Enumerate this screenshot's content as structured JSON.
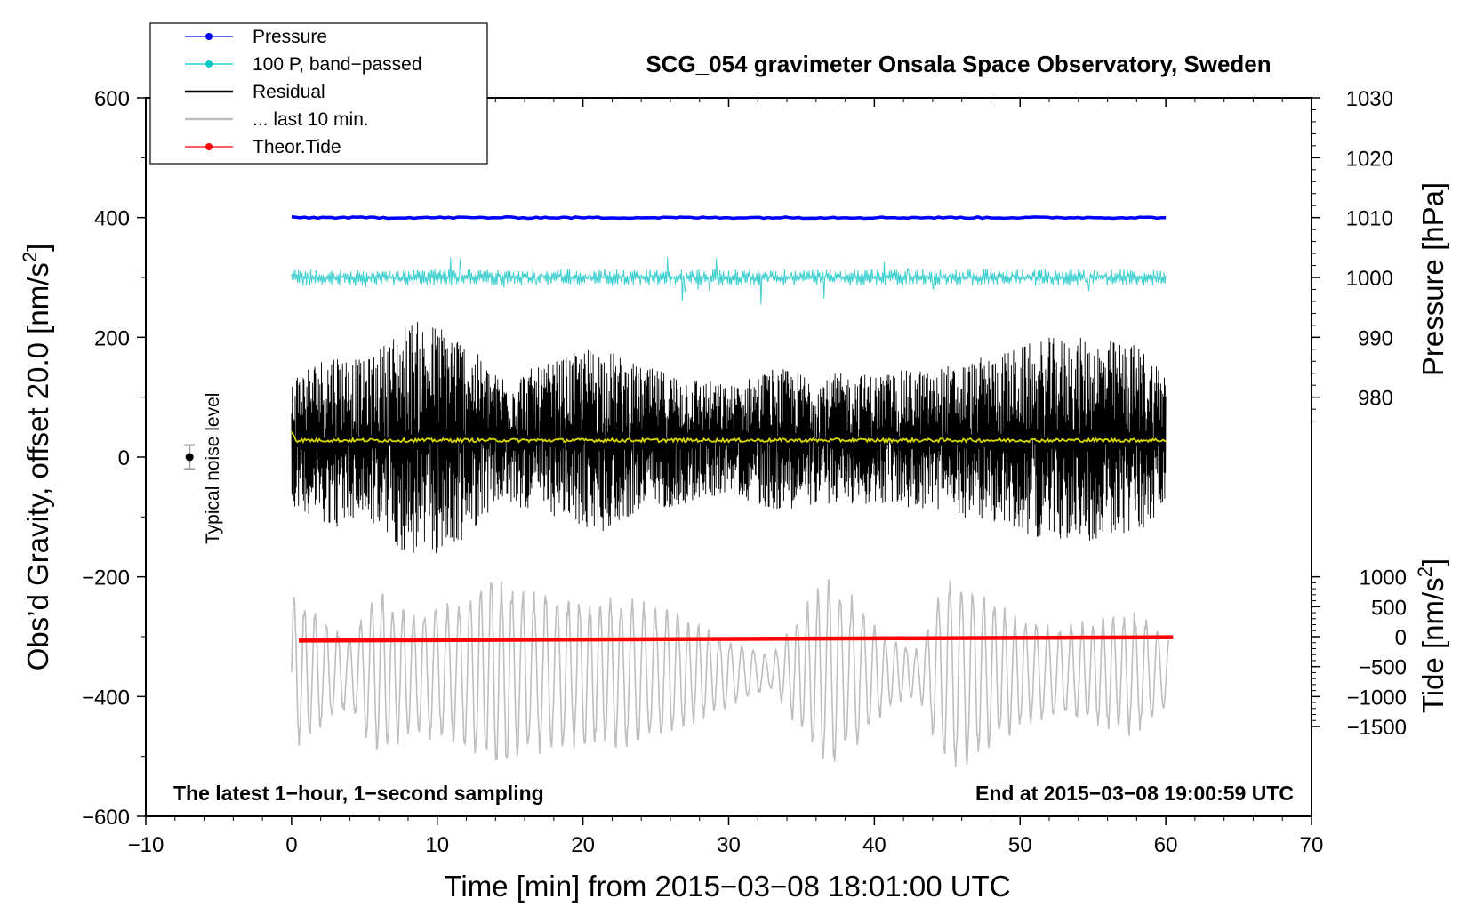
{
  "chart_data": {
    "type": "line",
    "title": "SCG_054 gravimeter Onsala Space Observatory, Sweden",
    "xlabel": "Time [min] from 2015−03−08 18:01:00 UTC",
    "ylabel_left": "Obs’d Gravity, offset 20.0 [nm/s²]",
    "ylabel_left_parts": {
      "main": "Obs’d Gravity, offset 20.0 [nm/s",
      "sup": "2",
      "tail": "]"
    },
    "ylabel_right_pressure": "Pressure [hPa]",
    "ylabel_right_tide": "Tide [nm/s²]",
    "ylabel_right_tide_parts": {
      "main": "Tide [nm/s",
      "sup": "2",
      "tail": "]"
    },
    "xlim": [
      -10,
      70
    ],
    "ylim_left": [
      -600,
      600
    ],
    "xticks": [
      -10,
      0,
      10,
      20,
      30,
      40,
      50,
      60,
      70
    ],
    "xtick_labels": [
      "−10",
      "0",
      "10",
      "20",
      "30",
      "40",
      "50",
      "60",
      "70"
    ],
    "yticks_left": [
      -600,
      -400,
      -200,
      0,
      200,
      400,
      600
    ],
    "ytick_labels_left": [
      "−600",
      "−400",
      "−200",
      "0",
      "200",
      "400",
      "600"
    ],
    "pressure_axis": {
      "ticks": [
        980,
        990,
        1000,
        1010,
        1020,
        1030
      ],
      "tick_labels": [
        "980",
        "990",
        "1000",
        "1010",
        "1020",
        "1030"
      ],
      "left_units_per_hPa": 10,
      "ref_hpa": 1010,
      "ref_left": 400
    },
    "tide_axis": {
      "ticks": [
        -1500,
        -1000,
        -500,
        0,
        500,
        1000
      ],
      "tick_labels": [
        "−1500",
        "−1000",
        "−500",
        "0",
        "500",
        "1000"
      ],
      "left_units_per_unit": 0.1,
      "ref_tide": 0,
      "ref_left": -300
    },
    "legend": [
      {
        "name": "Pressure",
        "color": "#0000ff",
        "marker": true
      },
      {
        "name": "100 P, band−passed",
        "color": "#00c8c8",
        "marker": true
      },
      {
        "name": "Residual",
        "color": "#000000",
        "marker": false
      },
      {
        "name": "... last 10 min.",
        "color": "#bebebe",
        "marker": false
      },
      {
        "name": "Theor.Tide",
        "color": "#ff0000",
        "marker": true
      }
    ],
    "series": [
      {
        "name": "Pressure",
        "color": "#0000ff",
        "x_range": [
          0,
          60
        ],
        "level_hpa": 1010.0
      },
      {
        "name": "100 P, band−passed",
        "color": "#40d0d0",
        "x_range": [
          0,
          60
        ],
        "center": 300,
        "amplitude": 28
      },
      {
        "name": "Residual",
        "color": "#000000",
        "x_range": [
          0,
          60
        ],
        "center": 30,
        "envelope": [
          [
            0,
            110
          ],
          [
            3,
            150
          ],
          [
            5,
            130
          ],
          [
            8,
            200
          ],
          [
            11,
            190
          ],
          [
            14,
            110
          ],
          [
            17,
            120
          ],
          [
            21,
            160
          ],
          [
            24,
            120
          ],
          [
            27,
            110
          ],
          [
            30,
            90
          ],
          [
            33,
            120
          ],
          [
            36,
            110
          ],
          [
            40,
            110
          ],
          [
            44,
            120
          ],
          [
            48,
            140
          ],
          [
            52,
            170
          ],
          [
            55,
            170
          ],
          [
            58,
            160
          ],
          [
            60,
            120
          ]
        ]
      },
      {
        "name": "Residual smoothed",
        "color": "#d8d800",
        "x_range": [
          0,
          60
        ],
        "level": 28
      },
      {
        "name": "... last 10 min.",
        "color": "#bebebe",
        "x_range": [
          0,
          60.2
        ],
        "center": -360,
        "envelope": [
          [
            0,
            140
          ],
          [
            2,
            100
          ],
          [
            4,
            60
          ],
          [
            6,
            150
          ],
          [
            8,
            110
          ],
          [
            11,
            120
          ],
          [
            14,
            170
          ],
          [
            17,
            140
          ],
          [
            20,
            130
          ],
          [
            23,
            130
          ],
          [
            26,
            110
          ],
          [
            29,
            70
          ],
          [
            33,
            30
          ],
          [
            35,
            110
          ],
          [
            37,
            170
          ],
          [
            39,
            120
          ],
          [
            41,
            60
          ],
          [
            43,
            40
          ],
          [
            45,
            180
          ],
          [
            47,
            150
          ],
          [
            49,
            110
          ],
          [
            52,
            80
          ],
          [
            55,
            90
          ],
          [
            58,
            110
          ],
          [
            60,
            60
          ]
        ]
      },
      {
        "name": "Theor.Tide",
        "color": "#ff0000",
        "x_range": [
          0.5,
          60.5
        ],
        "start_tide": -65,
        "end_tide": -10
      }
    ],
    "noise_level": {
      "x": -7,
      "y": 0,
      "err": 20,
      "label": "Typical noise level"
    },
    "annotations": {
      "left": "The latest 1−hour, 1−second sampling",
      "right": "End at 2015−03−08 19:00:59 UTC"
    }
  }
}
